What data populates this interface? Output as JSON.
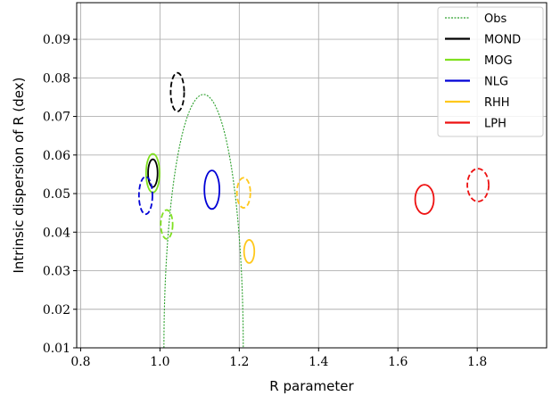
{
  "chart_data": {
    "type": "scatter",
    "xlabel": "R parameter",
    "ylabel": "Intrinsic dispersion of R (dex)",
    "xlim": [
      0.79,
      1.975
    ],
    "ylim": [
      0.01,
      0.0995
    ],
    "xticks": [
      0.8,
      1.0,
      1.2,
      1.4,
      1.6,
      1.8
    ],
    "xtick_labels": [
      "0.8",
      "1.0",
      "1.2",
      "1.4",
      "1.6",
      "1.8"
    ],
    "yticks": [
      0.01,
      0.02,
      0.03,
      0.04,
      0.05,
      0.06,
      0.07,
      0.08,
      0.09
    ],
    "ytick_labels": [
      "0.01",
      "0.02",
      "0.03",
      "0.04",
      "0.05",
      "0.06",
      "0.07",
      "0.08",
      "0.09"
    ],
    "grid": true,
    "legend_position": "top-right",
    "observed": {
      "name": "Obs",
      "color": "#2ca02c",
      "style": "dotted",
      "center": [
        1.11,
        0.01
      ],
      "half_width": 0.1,
      "height": 0.0657
    },
    "series": [
      {
        "name": "MOND",
        "color": "#000000",
        "ellipses": [
          {
            "x": 0.982,
            "y": 0.0553,
            "w": 0.024,
            "h": 0.0072,
            "style": "solid"
          },
          {
            "x": 1.044,
            "y": 0.0763,
            "w": 0.034,
            "h": 0.01,
            "style": "dashed"
          }
        ]
      },
      {
        "name": "MOG",
        "color": "#7fe01f",
        "ellipses": [
          {
            "x": 0.982,
            "y": 0.0553,
            "w": 0.034,
            "h": 0.01,
            "style": "solid"
          },
          {
            "x": 1.017,
            "y": 0.042,
            "w": 0.03,
            "h": 0.0075,
            "style": "dashed"
          }
        ]
      },
      {
        "name": "NLG",
        "color": "#0000d6",
        "ellipses": [
          {
            "x": 1.131,
            "y": 0.051,
            "w": 0.038,
            "h": 0.01,
            "style": "solid"
          },
          {
            "x": 0.964,
            "y": 0.0495,
            "w": 0.034,
            "h": 0.0097,
            "style": "dashed"
          }
        ]
      },
      {
        "name": "RHH",
        "color": "#ffc81c",
        "ellipses": [
          {
            "x": 1.225,
            "y": 0.035,
            "w": 0.026,
            "h": 0.006,
            "style": "solid"
          },
          {
            "x": 1.211,
            "y": 0.0502,
            "w": 0.034,
            "h": 0.0078,
            "style": "dashed"
          }
        ]
      },
      {
        "name": "LPH",
        "color": "#ee1111",
        "ellipses": [
          {
            "x": 1.667,
            "y": 0.0485,
            "w": 0.047,
            "h": 0.0076,
            "style": "solid"
          },
          {
            "x": 1.802,
            "y": 0.0522,
            "w": 0.054,
            "h": 0.0085,
            "style": "dashed"
          }
        ]
      }
    ]
  }
}
